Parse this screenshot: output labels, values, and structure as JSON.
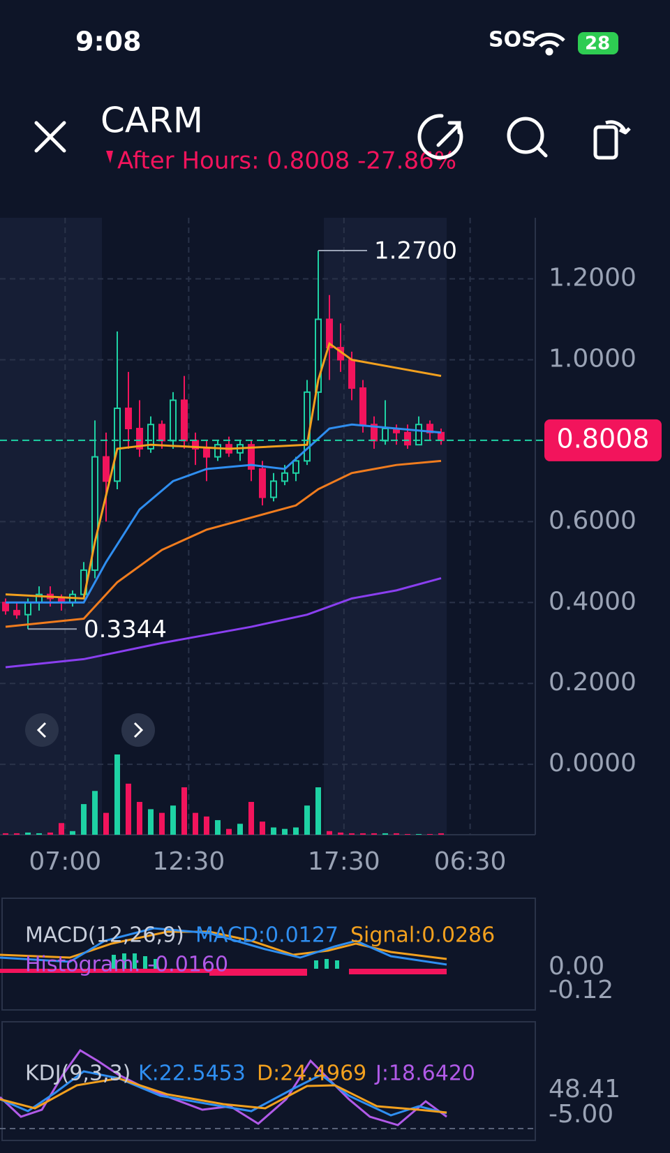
{
  "status": {
    "time": "9:08",
    "carrier": "SOS",
    "battery": "28"
  },
  "header": {
    "symbol": "CARM",
    "after_hours": "After Hours: 0.8008 -27.86%"
  },
  "chart_data": {
    "type": "candlestick",
    "ylim": [
      -0.174,
      1.351
    ],
    "yticks": [
      {
        "value": 0,
        "label": "0.0000"
      },
      {
        "value": 0.2,
        "label": "0.2000"
      },
      {
        "value": 0.4,
        "label": "0.4000"
      },
      {
        "value": 0.6,
        "label": "0.6000"
      },
      {
        "value": 1.0,
        "label": "1.0000"
      },
      {
        "value": 1.2,
        "label": "1.2000"
      }
    ],
    "xticks": [
      {
        "value": 5.33,
        "label": "07:00"
      },
      {
        "value": 16.4,
        "label": "12:30"
      },
      {
        "value": 30.3,
        "label": "17:30"
      },
      {
        "value": 41.6,
        "label": "06:30"
      }
    ],
    "last_price": 0.8008,
    "high_label": {
      "value": 1.27,
      "label": "1.2700"
    },
    "low_label": {
      "value": 0.3344,
      "label": "0.3344"
    },
    "up_color": "#1ed2a4",
    "down_color": "#f2145c",
    "open": [
      0.4,
      0.38,
      0.37,
      0.4,
      0.42,
      0.41,
      0.4,
      0.42,
      0.48,
      0.76,
      0.7,
      0.88,
      0.83,
      0.78,
      0.84,
      0.8,
      0.9,
      0.8,
      0.78,
      0.76,
      0.79,
      0.77,
      0.79,
      0.73,
      0.66,
      0.7,
      0.72,
      0.75,
      0.92,
      1.1,
      1.03,
      1.0,
      0.93,
      0.84,
      0.8,
      0.83,
      0.82,
      0.79,
      0.84,
      0.82
    ],
    "high": [
      0.41,
      0.4,
      0.41,
      0.44,
      0.44,
      0.42,
      0.43,
      0.5,
      0.85,
      0.82,
      1.07,
      0.97,
      0.9,
      0.86,
      0.85,
      0.92,
      0.96,
      0.82,
      0.8,
      0.8,
      0.81,
      0.8,
      0.8,
      0.75,
      0.72,
      0.74,
      0.76,
      0.95,
      1.27,
      1.16,
      1.09,
      1.02,
      0.95,
      0.86,
      0.9,
      0.84,
      0.84,
      0.86,
      0.85,
      0.83
    ],
    "low": [
      0.37,
      0.36,
      0.3344,
      0.38,
      0.39,
      0.38,
      0.39,
      0.41,
      0.46,
      0.6,
      0.68,
      0.78,
      0.76,
      0.77,
      0.78,
      0.78,
      0.78,
      0.74,
      0.7,
      0.75,
      0.76,
      0.75,
      0.7,
      0.64,
      0.65,
      0.69,
      0.7,
      0.74,
      0.85,
      0.95,
      0.97,
      0.9,
      0.82,
      0.78,
      0.79,
      0.79,
      0.78,
      0.79,
      0.8,
      0.79
    ],
    "close": [
      0.38,
      0.37,
      0.4,
      0.42,
      0.41,
      0.4,
      0.42,
      0.48,
      0.76,
      0.7,
      0.88,
      0.83,
      0.78,
      0.84,
      0.8,
      0.9,
      0.8,
      0.78,
      0.76,
      0.79,
      0.77,
      0.79,
      0.73,
      0.66,
      0.7,
      0.72,
      0.75,
      0.92,
      1.1,
      1.03,
      1.0,
      0.93,
      0.84,
      0.8,
      0.83,
      0.82,
      0.79,
      0.84,
      0.82,
      0.8008
    ],
    "volume": [
      2,
      2,
      3,
      2,
      3,
      16,
      5,
      42,
      60,
      30,
      110,
      70,
      45,
      35,
      30,
      40,
      65,
      30,
      25,
      20,
      8,
      15,
      45,
      18,
      10,
      8,
      10,
      40,
      65,
      5,
      3,
      2,
      2,
      2,
      2,
      2,
      1,
      1,
      1,
      2
    ],
    "series": [
      {
        "color": "#f2a01e",
        "x": [
          0,
          7,
          8,
          10,
          13,
          20,
          27,
          28,
          29,
          31,
          35,
          39
        ],
        "values": [
          0.42,
          0.41,
          0.55,
          0.78,
          0.79,
          0.78,
          0.79,
          0.95,
          1.04,
          1.0,
          0.98,
          0.96
        ]
      },
      {
        "color": "#2f8ef0",
        "x": [
          0,
          7,
          9,
          12,
          15,
          18,
          22,
          25,
          27,
          29,
          31,
          35,
          39
        ],
        "values": [
          0.4,
          0.4,
          0.5,
          0.63,
          0.7,
          0.73,
          0.74,
          0.73,
          0.78,
          0.83,
          0.84,
          0.83,
          0.82
        ]
      },
      {
        "color": "#f07c1e",
        "x": [
          0,
          7,
          10,
          14,
          18,
          22,
          26,
          28,
          31,
          35,
          39
        ],
        "values": [
          0.34,
          0.36,
          0.45,
          0.53,
          0.58,
          0.61,
          0.64,
          0.68,
          0.72,
          0.74,
          0.75
        ]
      },
      {
        "color": "#8a3ff0",
        "x": [
          0,
          7,
          14,
          22,
          27,
          31,
          35,
          39
        ],
        "values": [
          0.24,
          0.26,
          0.3,
          0.34,
          0.37,
          0.41,
          0.43,
          0.46
        ]
      }
    ]
  },
  "indicators": {
    "macd": {
      "name": "MACD(12,26,9)",
      "macd": "MACD:0.0127",
      "signal": "Signal:0.0286",
      "histogram": "Histogram: -0.0160",
      "axis_top": "0.00",
      "axis_bottom": "-0.12"
    },
    "kdj": {
      "name": "KDJ(9,3,3)",
      "k": "K:22.5453",
      "d": "D:24.4969",
      "j": "J:18.6420",
      "axis_top": "48.41",
      "axis_bottom": "-5.00"
    }
  }
}
